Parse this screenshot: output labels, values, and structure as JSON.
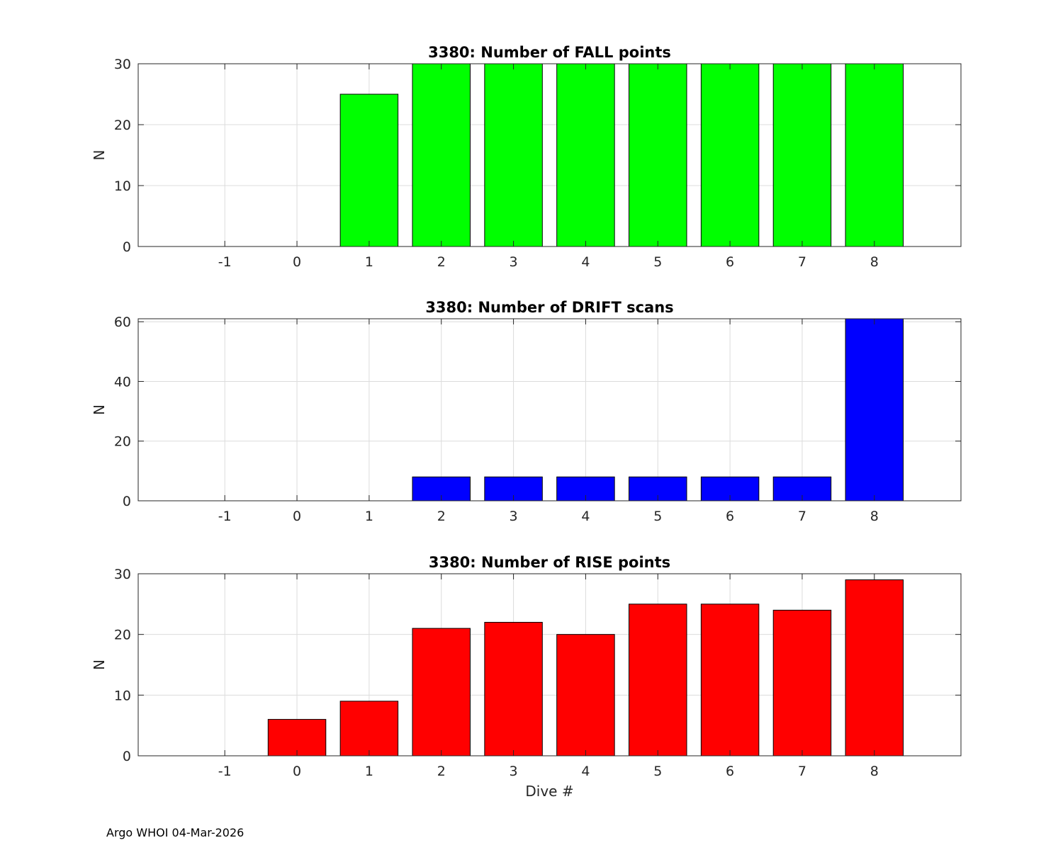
{
  "footer": "Argo WHOI 04-Mar-2026",
  "colors": {
    "fall": "#00ff00",
    "drift": "#0000ff",
    "rise": "#ff0000",
    "grid": "#dcdcdc",
    "axis": "#262626"
  },
  "chart_data": [
    {
      "type": "bar",
      "title": "3380: Number of FALL points",
      "xlabel": "",
      "ylabel": "N",
      "categories": [
        "-1",
        "0",
        "1",
        "2",
        "3",
        "4",
        "5",
        "6",
        "7",
        "8"
      ],
      "x": [
        -1,
        0,
        1,
        2,
        3,
        4,
        5,
        6,
        7,
        8
      ],
      "values": [
        0,
        0,
        25,
        30,
        30,
        30,
        30,
        30,
        30,
        30
      ],
      "color": "#00ff00",
      "xlim": [
        -2.2,
        9.2
      ],
      "ylim": [
        0,
        30
      ],
      "yticks": [
        0,
        10,
        20,
        30
      ],
      "grid": true
    },
    {
      "type": "bar",
      "title": "3380: Number of DRIFT scans",
      "xlabel": "",
      "ylabel": "N",
      "categories": [
        "-1",
        "0",
        "1",
        "2",
        "3",
        "4",
        "5",
        "6",
        "7",
        "8"
      ],
      "x": [
        -1,
        0,
        1,
        2,
        3,
        4,
        5,
        6,
        7,
        8
      ],
      "values": [
        0,
        0,
        0,
        8,
        8,
        8,
        8,
        8,
        8,
        61
      ],
      "color": "#0000ff",
      "xlim": [
        -2.2,
        9.2
      ],
      "ylim": [
        0,
        61
      ],
      "yticks": [
        0,
        20,
        40,
        60
      ],
      "grid": true
    },
    {
      "type": "bar",
      "title": "3380: Number of RISE points",
      "xlabel": "Dive #",
      "ylabel": "N",
      "categories": [
        "-1",
        "0",
        "1",
        "2",
        "3",
        "4",
        "5",
        "6",
        "7",
        "8"
      ],
      "x": [
        -1,
        0,
        1,
        2,
        3,
        4,
        5,
        6,
        7,
        8
      ],
      "values": [
        0,
        6,
        9,
        21,
        22,
        20,
        25,
        25,
        24,
        29
      ],
      "color": "#ff0000",
      "xlim": [
        -2.2,
        9.2
      ],
      "ylim": [
        0,
        30
      ],
      "yticks": [
        0,
        10,
        20,
        30
      ],
      "grid": true
    }
  ]
}
